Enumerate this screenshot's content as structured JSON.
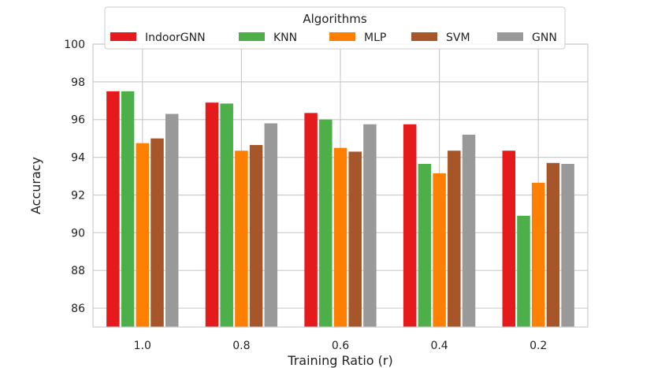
{
  "chart_data": {
    "type": "bar",
    "title": "",
    "xlabel": "Training Ratio (r)",
    "ylabel": "Accuracy",
    "categories": [
      "1.0",
      "0.8",
      "0.6",
      "0.4",
      "0.2"
    ],
    "ylim": [
      85,
      100
    ],
    "yticks": [
      86,
      88,
      90,
      92,
      94,
      96,
      98,
      100
    ],
    "grid": true,
    "legend": {
      "title": "Algorithms",
      "placement": "top-center"
    },
    "series": [
      {
        "name": "IndoorGNN",
        "color": "#e41a1c",
        "values": [
          97.5,
          96.9,
          96.35,
          95.75,
          94.35
        ]
      },
      {
        "name": "KNN",
        "color": "#4daf4a",
        "values": [
          97.5,
          96.85,
          96.0,
          93.65,
          90.9
        ]
      },
      {
        "name": "MLP",
        "color": "#ff7f00",
        "values": [
          94.75,
          94.35,
          94.5,
          93.15,
          92.65
        ]
      },
      {
        "name": "SVM",
        "color": "#a65628",
        "values": [
          95.0,
          94.65,
          94.3,
          94.35,
          93.7
        ]
      },
      {
        "name": "GNN",
        "color": "#999999",
        "values": [
          96.3,
          95.8,
          95.75,
          95.2,
          93.65
        ]
      }
    ]
  }
}
